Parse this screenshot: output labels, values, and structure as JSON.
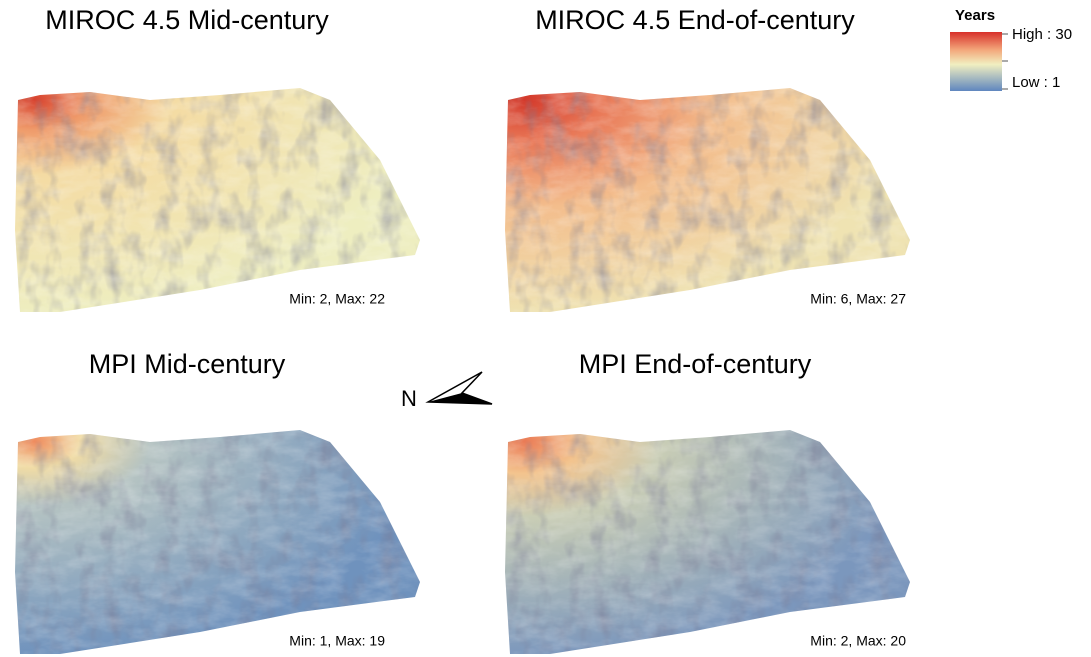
{
  "panels": [
    {
      "title": "MIROC 4.5 Mid-century",
      "stats": "Min: 2, Max: 22"
    },
    {
      "title": "MIROC 4.5 End-of-century",
      "stats": "Min: 6, Max: 27"
    },
    {
      "title": "MPI Mid-century",
      "stats": "Min: 1, Max: 19"
    },
    {
      "title": "MPI End-of-century",
      "stats": "Min: 2, Max: 20"
    }
  ],
  "legend": {
    "title": "Years",
    "high": "High : 30",
    "low": "Low : 1"
  },
  "north_arrow": {
    "label": "N"
  }
}
